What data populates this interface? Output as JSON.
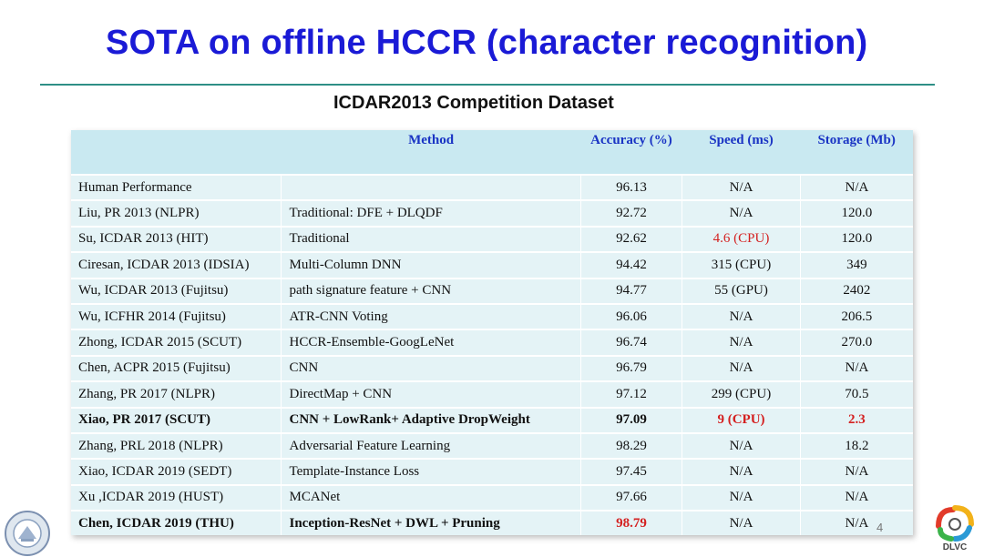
{
  "slide": {
    "title": "SOTA on offline HCCR (character recognition)",
    "subtitle": "ICDAR2013 Competition Dataset",
    "page_number": "4"
  },
  "table": {
    "headers": {
      "author": "",
      "method": "Method",
      "accuracy": "Accuracy (%)",
      "speed": "Speed (ms)",
      "storage": "Storage (Mb)"
    },
    "rows": [
      {
        "author": "Human Performance",
        "method": "",
        "accuracy": "96.13",
        "speed": "N/A",
        "storage": "N/A"
      },
      {
        "author": "Liu, PR 2013 (NLPR)",
        "method": "Traditional: DFE + DLQDF",
        "accuracy": "92.72",
        "speed": "N/A",
        "storage": "120.0"
      },
      {
        "author": "Su, ICDAR 2013 (HIT)",
        "method": "Traditional",
        "accuracy": "92.62",
        "speed": "4.6 (CPU)",
        "storage": "120.0"
      },
      {
        "author": "Ciresan, ICDAR 2013 (IDSIA)",
        "method": "Multi-Column DNN",
        "accuracy": "94.42",
        "speed": "315 (CPU)",
        "storage": "349"
      },
      {
        "author": "Wu, ICDAR 2013 (Fujitsu)",
        "method": "path signature feature + CNN",
        "accuracy": "94.77",
        "speed": "55 (GPU)",
        "storage": "2402"
      },
      {
        "author": "Wu, ICFHR 2014 (Fujitsu)",
        "method": "ATR-CNN Voting",
        "accuracy": "96.06",
        "speed": "N/A",
        "storage": "206.5"
      },
      {
        "author": "Zhong, ICDAR 2015 (SCUT)",
        "method": "HCCR-Ensemble-GoogLeNet",
        "accuracy": "96.74",
        "speed": "N/A",
        "storage": "270.0"
      },
      {
        "author": "Chen, ACPR 2015 (Fujitsu)",
        "method": "CNN",
        "accuracy": "96.79",
        "speed": "N/A",
        "storage": "N/A"
      },
      {
        "author": "Zhang, PR 2017 (NLPR)",
        "method": "DirectMap + CNN",
        "accuracy": "97.12",
        "speed": "299 (CPU)",
        "storage": "70.5"
      },
      {
        "author": "Xiao, PR 2017 (SCUT)",
        "method": "CNN + LowRank+ Adaptive DropWeight",
        "accuracy": "97.09",
        "speed": "9  (CPU)",
        "storage": "2.3"
      },
      {
        "author": "Zhang, PRL 2018 (NLPR)",
        "method": "Adversarial Feature Learning",
        "accuracy": "98.29",
        "speed": "N/A",
        "storage": "18.2"
      },
      {
        "author": "Xiao, ICDAR 2019 (SEDT)",
        "method": "Template-Instance Loss",
        "accuracy": "97.45",
        "speed": "N/A",
        "storage": "N/A"
      },
      {
        "author": "Xu ,ICDAR 2019 (HUST)",
        "method": "MCANet",
        "accuracy": "97.66",
        "speed": "N/A",
        "storage": "N/A"
      },
      {
        "author": "Chen, ICDAR 2019 (THU)",
        "method": "Inception-ResNet + DWL + Pruning",
        "accuracy": "98.79",
        "speed": "N/A",
        "storage": "N/A"
      }
    ]
  },
  "logos": {
    "right_text": "DLVC"
  },
  "colors": {
    "title": "#1a1ad6",
    "header_text": "#1a34c4",
    "highlight": "#d42020",
    "rule": "#2e8f86"
  }
}
